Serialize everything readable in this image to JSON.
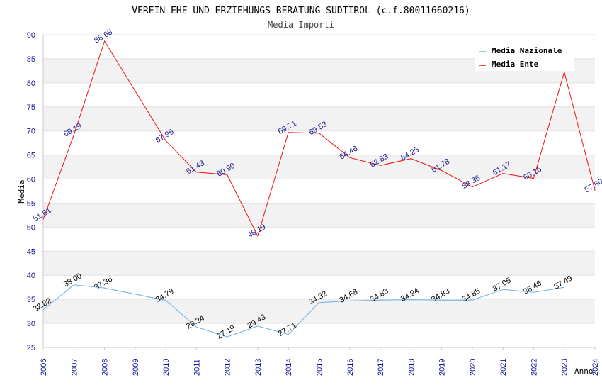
{
  "chart_data": {
    "type": "line",
    "title": "VEREIN EHE UND ERZIEHUNGS BERATUNG SUDTIROL (c.f.80011660216)",
    "subtitle": "Media Importi",
    "xlabel": "Anno",
    "ylabel": "Media",
    "ylim": [
      25,
      90
    ],
    "yticks": [
      "25",
      "30",
      "35",
      "40",
      "45",
      "50",
      "55",
      "60",
      "65",
      "70",
      "75",
      "80",
      "85",
      "90"
    ],
    "categories": [
      "2006",
      "2007",
      "2008",
      "2009",
      "2010",
      "2011",
      "2012",
      "2013",
      "2014",
      "2015",
      "2016",
      "2017",
      "2018",
      "2019",
      "2020",
      "2021",
      "2022",
      "2023",
      "2024"
    ],
    "legend_position": "top-right",
    "series": [
      {
        "name": "Media Nazionale",
        "color": "#6aaee6",
        "label_color": "#000000",
        "values": [
          32.82,
          38.0,
          37.36,
          null,
          34.79,
          29.24,
          27.19,
          29.43,
          27.71,
          34.32,
          34.68,
          34.83,
          34.94,
          34.83,
          34.85,
          37.05,
          36.46,
          37.49,
          null
        ],
        "labels": [
          "32.82",
          "38.00",
          "37.36",
          null,
          "34.79",
          "29.24",
          "27.19",
          "29.43",
          "27.71",
          "34.32",
          "34.68",
          "34.83",
          "34.94",
          "34.83",
          "34.85",
          "37.05",
          "36.46",
          "37.49",
          null
        ]
      },
      {
        "name": "Media Ente",
        "color": "#ee1111",
        "label_color": "#1a1a8c",
        "values": [
          51.61,
          69.19,
          88.68,
          null,
          67.95,
          61.43,
          60.9,
          48.19,
          69.71,
          69.53,
          64.46,
          62.83,
          64.25,
          61.78,
          58.36,
          61.17,
          60.16,
          82.26,
          57.6
        ],
        "labels": [
          "51.61",
          "69.19",
          "88.68",
          null,
          "67.95",
          "61.43",
          "60.90",
          "48.19",
          "69.71",
          "69.53",
          "64.46",
          "62.83",
          "64.25",
          "61.78",
          "58.36",
          "61.17",
          "60.16",
          null,
          "57.60"
        ]
      }
    ]
  }
}
